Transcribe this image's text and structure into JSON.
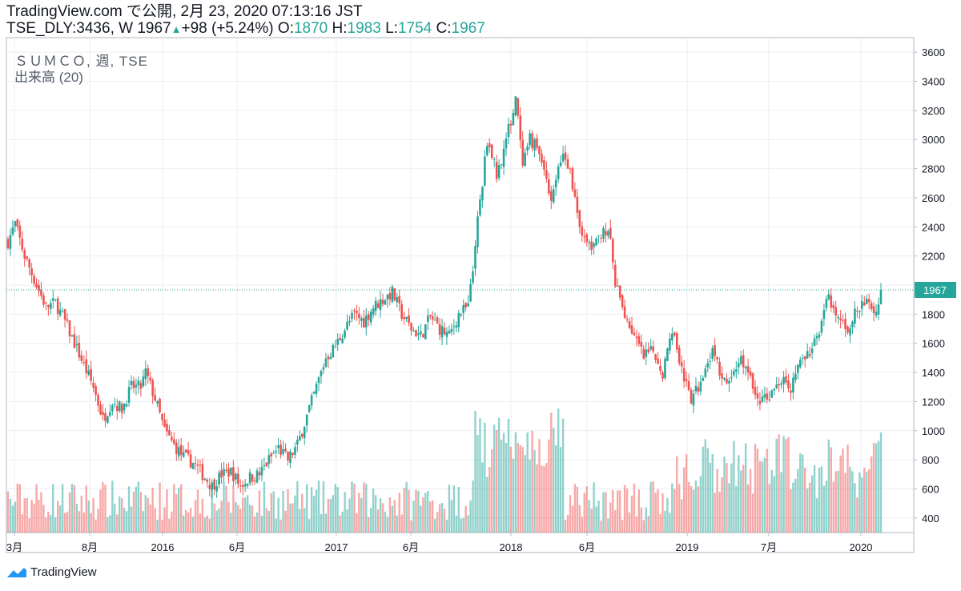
{
  "header": {
    "published": "TradingView.com で公開, 2月 23, 2020 07:13:16 JST",
    "symbol_interval": "TSE_DLY:3436, W",
    "last": "1967",
    "change": "+98 (+5.24%)",
    "o_label": "O:",
    "o_value": "1870",
    "h_label": "H:",
    "h_value": "1983",
    "l_label": "L:",
    "l_value": "1754",
    "c_label": "C:",
    "c_value": "1967"
  },
  "overlay": {
    "symbol_title": "ＳＵＭＣＯ, 週, TSE",
    "volume_title": "出来高 (20)"
  },
  "footer": {
    "brand": "TradingView"
  },
  "colors": {
    "up": "#26a69a",
    "down": "#ef5350",
    "grid": "#e9eef3",
    "axis_text": "#131722"
  },
  "chart_data": {
    "type": "candlestick",
    "price_axis": {
      "ticks": [
        400,
        600,
        800,
        1000,
        1200,
        1400,
        1600,
        1800,
        2000,
        2200,
        2400,
        2600,
        2800,
        3000,
        3200,
        3400,
        3600
      ],
      "range": [
        300,
        3700
      ]
    },
    "x_axis": {
      "labels": [
        "3月",
        "8月",
        "2016",
        "6月",
        "2017",
        "6月",
        "2018",
        "6月",
        "2019",
        "7月",
        "2020"
      ]
    },
    "last_price_label": "1967",
    "close_path": [
      [
        0,
        2300
      ],
      [
        3,
        2420
      ],
      [
        7,
        2200
      ],
      [
        12,
        2000
      ],
      [
        16,
        1850
      ],
      [
        20,
        1880
      ],
      [
        24,
        1750
      ],
      [
        28,
        1600
      ],
      [
        32,
        1450
      ],
      [
        36,
        1300
      ],
      [
        40,
        1080
      ],
      [
        44,
        1200
      ],
      [
        48,
        1150
      ],
      [
        52,
        1300
      ],
      [
        56,
        1300
      ],
      [
        58,
        1400
      ],
      [
        62,
        1220
      ],
      [
        66,
        1000
      ],
      [
        70,
        900
      ],
      [
        74,
        820
      ],
      [
        78,
        780
      ],
      [
        82,
        700
      ],
      [
        86,
        620
      ],
      [
        90,
        700
      ],
      [
        94,
        720
      ],
      [
        98,
        620
      ],
      [
        102,
        680
      ],
      [
        106,
        700
      ],
      [
        110,
        800
      ],
      [
        114,
        880
      ],
      [
        118,
        800
      ],
      [
        122,
        900
      ],
      [
        126,
        1100
      ],
      [
        130,
        1300
      ],
      [
        134,
        1500
      ],
      [
        138,
        1580
      ],
      [
        142,
        1700
      ],
      [
        146,
        1800
      ],
      [
        150,
        1750
      ],
      [
        154,
        1850
      ],
      [
        158,
        1900
      ],
      [
        162,
        1950
      ],
      [
        166,
        1800
      ],
      [
        170,
        1700
      ],
      [
        174,
        1650
      ],
      [
        178,
        1780
      ],
      [
        182,
        1700
      ],
      [
        186,
        1650
      ],
      [
        190,
        1800
      ],
      [
        194,
        1850
      ],
      [
        196,
        2100
      ],
      [
        198,
        2450
      ],
      [
        200,
        2700
      ],
      [
        202,
        3000
      ],
      [
        204,
        2900
      ],
      [
        206,
        2750
      ],
      [
        210,
        3000
      ],
      [
        213,
        3200
      ],
      [
        214,
        3300
      ],
      [
        217,
        2800
      ],
      [
        220,
        3000
      ],
      [
        223,
        2950
      ],
      [
        226,
        2800
      ],
      [
        229,
        2600
      ],
      [
        232,
        2800
      ],
      [
        235,
        2900
      ],
      [
        238,
        2700
      ],
      [
        240,
        2500
      ],
      [
        243,
        2300
      ],
      [
        247,
        2250
      ],
      [
        251,
        2400
      ],
      [
        254,
        2300
      ],
      [
        256,
        2000
      ],
      [
        260,
        1800
      ],
      [
        264,
        1650
      ],
      [
        268,
        1500
      ],
      [
        272,
        1550
      ],
      [
        276,
        1400
      ],
      [
        280,
        1700
      ],
      [
        283,
        1500
      ],
      [
        286,
        1300
      ],
      [
        288,
        1200
      ],
      [
        291,
        1300
      ],
      [
        294,
        1450
      ],
      [
        297,
        1550
      ],
      [
        300,
        1400
      ],
      [
        303,
        1300
      ],
      [
        306,
        1400
      ],
      [
        309,
        1500
      ],
      [
        312,
        1400
      ],
      [
        315,
        1250
      ],
      [
        318,
        1200
      ],
      [
        321,
        1250
      ],
      [
        324,
        1300
      ],
      [
        327,
        1400
      ],
      [
        330,
        1300
      ],
      [
        333,
        1450
      ],
      [
        336,
        1500
      ],
      [
        339,
        1550
      ],
      [
        342,
        1700
      ],
      [
        344,
        1850
      ],
      [
        346,
        1900
      ],
      [
        348,
        1800
      ],
      [
        351,
        1750
      ],
      [
        354,
        1700
      ],
      [
        357,
        1800
      ],
      [
        360,
        1850
      ],
      [
        363,
        1900
      ],
      [
        365,
        1800
      ],
      [
        367,
        1870
      ],
      [
        368,
        1967
      ]
    ],
    "n_bars": 369
  }
}
